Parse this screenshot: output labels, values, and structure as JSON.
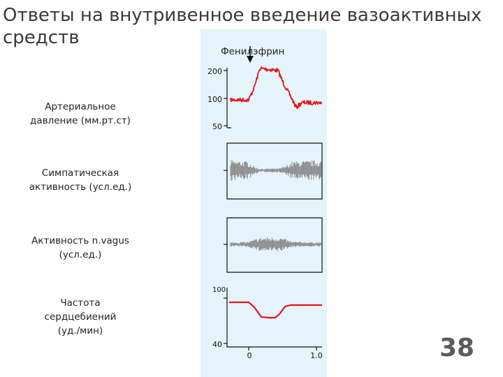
{
  "title": "Ответы на внутривенное введение вазоактивных средств",
  "drug_label": "Фенилэфрин",
  "labels": {
    "bp": [
      "Артериальное",
      "давление (мм.рт.ст)"
    ],
    "sympathetic": [
      "Симпатическая",
      "активность (усл.ед.)"
    ],
    "vagus": [
      "Активность n.vagus",
      "(усл.ед.)"
    ],
    "hr": [
      "Частота",
      "сердцебиений",
      "(уд./мин)"
    ]
  },
  "bp_axis": {
    "ticks": [
      "200",
      "100",
      "50"
    ],
    "values": [
      200,
      100,
      50
    ]
  },
  "hr_axis": {
    "ticks": [
      "100",
      "40"
    ],
    "values": [
      100,
      40
    ]
  },
  "time_axis": {
    "ticks": [
      "0",
      "1.0"
    ],
    "values": [
      0,
      1.0
    ]
  },
  "slide_number": "38",
  "colors": {
    "bp_trace": "#e8141b",
    "hr_trace": "#e8141b",
    "neural_trace": "#8a8a8a",
    "panel": "#e4f4fa"
  }
}
